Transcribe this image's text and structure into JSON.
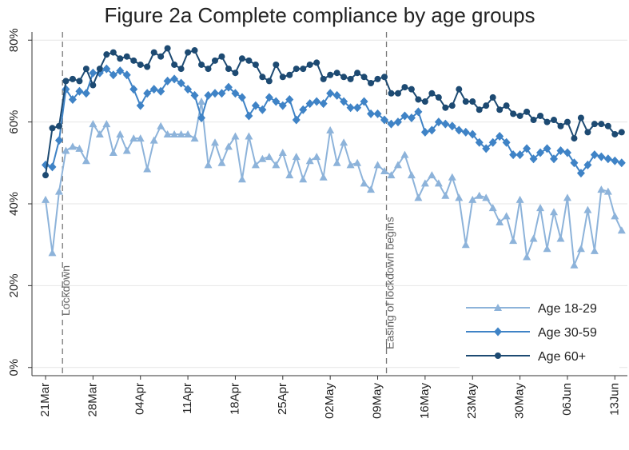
{
  "chart_data": {
    "type": "line",
    "title": "Figure 2a Complete compliance by age groups",
    "categories": [
      "21Mar",
      null,
      null,
      null,
      null,
      null,
      null,
      "28Mar",
      null,
      null,
      null,
      null,
      null,
      null,
      "04Apr",
      null,
      null,
      null,
      null,
      null,
      null,
      "11Apr",
      null,
      null,
      null,
      null,
      null,
      null,
      "18Apr",
      null,
      null,
      null,
      null,
      null,
      null,
      "25Apr",
      null,
      null,
      null,
      null,
      null,
      null,
      "02May",
      null,
      null,
      null,
      null,
      null,
      null,
      "09May",
      null,
      null,
      null,
      null,
      null,
      null,
      "16May",
      null,
      null,
      null,
      null,
      null,
      null,
      "23May",
      null,
      null,
      null,
      null,
      null,
      null,
      "30May",
      null,
      null,
      null,
      null,
      null,
      null,
      "06Jun",
      null,
      null,
      null,
      null,
      null,
      null,
      "13Jun",
      null
    ],
    "series": [
      {
        "name": "Age 18-29",
        "color": "#8db3da",
        "marker": "triangle",
        "values": [
          41,
          28,
          43,
          53,
          54,
          53.5,
          50.5,
          59.5,
          57,
          59.5,
          52.5,
          57,
          53,
          56,
          56,
          48.5,
          55.5,
          59,
          57,
          57,
          57,
          57,
          56,
          65,
          49.5,
          55,
          50,
          54,
          56.5,
          46,
          56.5,
          49.5,
          51,
          51.5,
          49.5,
          52.5,
          47,
          51.5,
          46,
          50.5,
          51.5,
          46.5,
          58,
          50,
          55,
          49.5,
          50,
          45,
          43.5,
          49.5,
          48,
          47,
          49.5,
          52,
          47,
          41.5,
          45,
          47,
          45,
          42,
          46.5,
          41.5,
          30,
          41,
          42,
          41.5,
          39,
          35.5,
          37,
          31,
          41,
          27,
          31.5,
          39,
          29,
          38,
          31.5,
          41.5,
          25,
          29,
          38.5,
          28.5,
          43.5,
          43,
          37,
          33.5
        ]
      },
      {
        "name": "Age 30-59",
        "color": "#3f83c6",
        "marker": "diamond",
        "values": [
          49.5,
          49,
          55.5,
          68,
          65.5,
          67.5,
          67,
          72,
          72,
          73,
          71.5,
          72.5,
          71.5,
          68,
          64,
          67,
          68,
          67.5,
          70,
          70.5,
          69.5,
          68,
          66.5,
          61,
          66.5,
          67,
          67,
          68.5,
          67,
          66,
          61.5,
          64,
          63,
          66,
          65,
          64,
          65.5,
          60.5,
          63,
          64.5,
          65,
          64.5,
          67,
          66.5,
          65,
          63.5,
          63.5,
          65,
          62,
          62,
          60.5,
          59.5,
          60,
          61.5,
          61,
          62.5,
          57.5,
          58,
          60,
          59.5,
          59,
          58,
          57.5,
          57,
          55,
          53.5,
          55,
          56.5,
          55,
          52,
          52,
          53.5,
          51,
          52.5,
          53.5,
          51,
          53,
          52.5,
          50,
          47.5,
          49.5,
          52,
          51.5,
          51,
          50.5,
          50
        ]
      },
      {
        "name": "Age 60+",
        "color": "#1d4a72",
        "marker": "circle",
        "values": [
          47,
          58.5,
          59,
          70,
          70.5,
          70,
          73,
          69,
          73,
          76.5,
          77,
          75.5,
          76,
          75,
          74,
          73.5,
          77,
          76,
          78,
          74,
          73,
          77,
          77.5,
          74,
          73,
          75,
          76,
          73,
          72,
          75.5,
          75,
          74,
          71,
          70,
          74,
          71,
          71.5,
          73,
          73,
          74,
          74.5,
          70.5,
          71.5,
          72,
          71,
          70.5,
          72,
          71,
          69.5,
          70.5,
          71,
          67,
          67,
          68.5,
          68,
          65.5,
          65,
          67,
          66,
          63.5,
          64,
          68,
          65,
          65,
          63,
          64,
          66,
          63,
          64,
          62,
          61.5,
          62.5,
          60.5,
          61.5,
          60,
          60.5,
          59,
          60,
          56,
          61,
          57.5,
          59.5,
          59.5,
          59,
          57,
          57.5
        ]
      }
    ],
    "annotations": [
      {
        "text": "Lockdown",
        "x": 2.5
      },
      {
        "text": "Easing of lockdown begins",
        "x": 50.3
      }
    ],
    "ylim": [
      -2,
      82
    ],
    "yticks": [
      {
        "value": 0,
        "label": "0%"
      },
      {
        "value": 20,
        "label": "20%"
      },
      {
        "value": 40,
        "label": "40%"
      },
      {
        "value": 60,
        "label": "60%"
      },
      {
        "value": 80,
        "label": "80%"
      }
    ],
    "grid": true,
    "legend": "lower right"
  }
}
